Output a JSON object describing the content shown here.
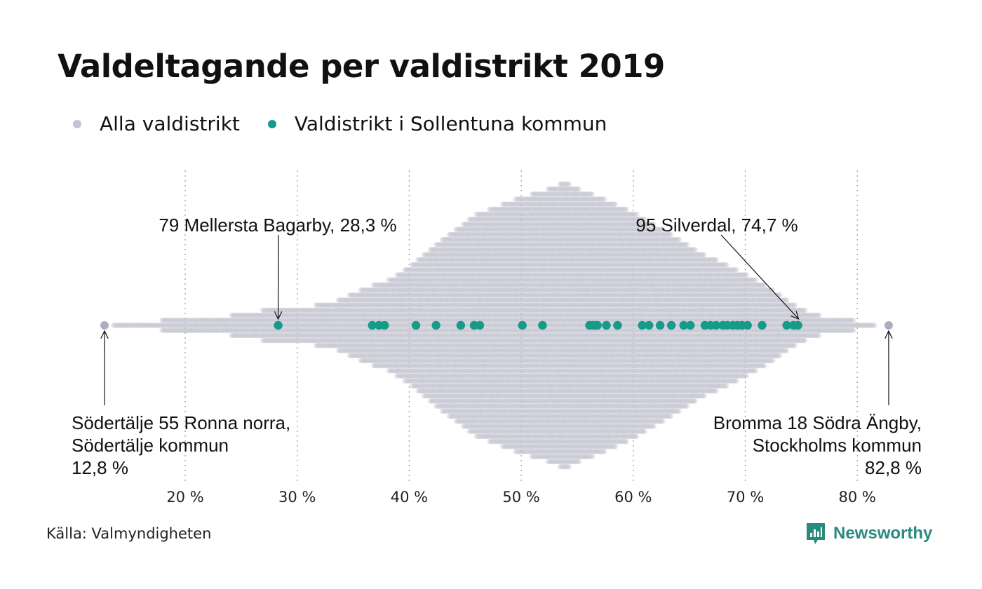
{
  "title": "Valdeltagande per valdistrikt 2019",
  "legend": [
    {
      "label": "Alla valdistrikt",
      "color": "#c4c3d0"
    },
    {
      "label": "Valdistrikt i Sollentuna kommun",
      "color": "#169a8a"
    }
  ],
  "source": "Källa: Valmyndigheten",
  "brand": "Newsworthy",
  "chart_data": {
    "type": "scatter",
    "subtype": "beeswarm",
    "x_ticks": [
      20,
      30,
      40,
      50,
      60,
      70,
      80
    ],
    "x_tick_labels": [
      "20 %",
      "30 %",
      "40 %",
      "50 %",
      "60 %",
      "70 %",
      "80 %"
    ],
    "xlim": [
      12,
      84
    ],
    "grid": "vertical dotted",
    "legend_position": "top-left",
    "series": [
      {
        "name": "Alla valdistrikt",
        "color": "#c4c3d0",
        "peak": 54,
        "extremes": [
          12.8,
          82.8
        ]
      },
      {
        "name": "Valdistrikt i Sollentuna kommun",
        "color": "#169a8a",
        "values": [
          28.3,
          36.7,
          37.3,
          37.8,
          40.6,
          42.4,
          44.6,
          45.8,
          46.3,
          50.1,
          51.9,
          56.1,
          56.4,
          56.6,
          56.8,
          57.6,
          58.6,
          60.8,
          61.4,
          62.4,
          63.4,
          64.5,
          65.1,
          66.4,
          66.9,
          67.4,
          68.0,
          68.4,
          68.9,
          69.3,
          69.7,
          70.2,
          71.5,
          73.7,
          74.3,
          74.7
        ]
      }
    ],
    "annotations": [
      {
        "lines": [
          "79 Mellersta Bagarby, 28,3 %"
        ],
        "value": 28.3
      },
      {
        "lines": [
          "95 Silverdal, 74,7 %"
        ],
        "value": 74.7
      },
      {
        "lines": [
          "Södertälje 55 Ronna norra,",
          "Södertälje kommun",
          "12,8 %"
        ],
        "value": 12.8
      },
      {
        "lines": [
          "Bromma 18 Södra Ängby,",
          "Stockholms kommun",
          "82,8 %"
        ],
        "value": 82.8
      }
    ]
  }
}
